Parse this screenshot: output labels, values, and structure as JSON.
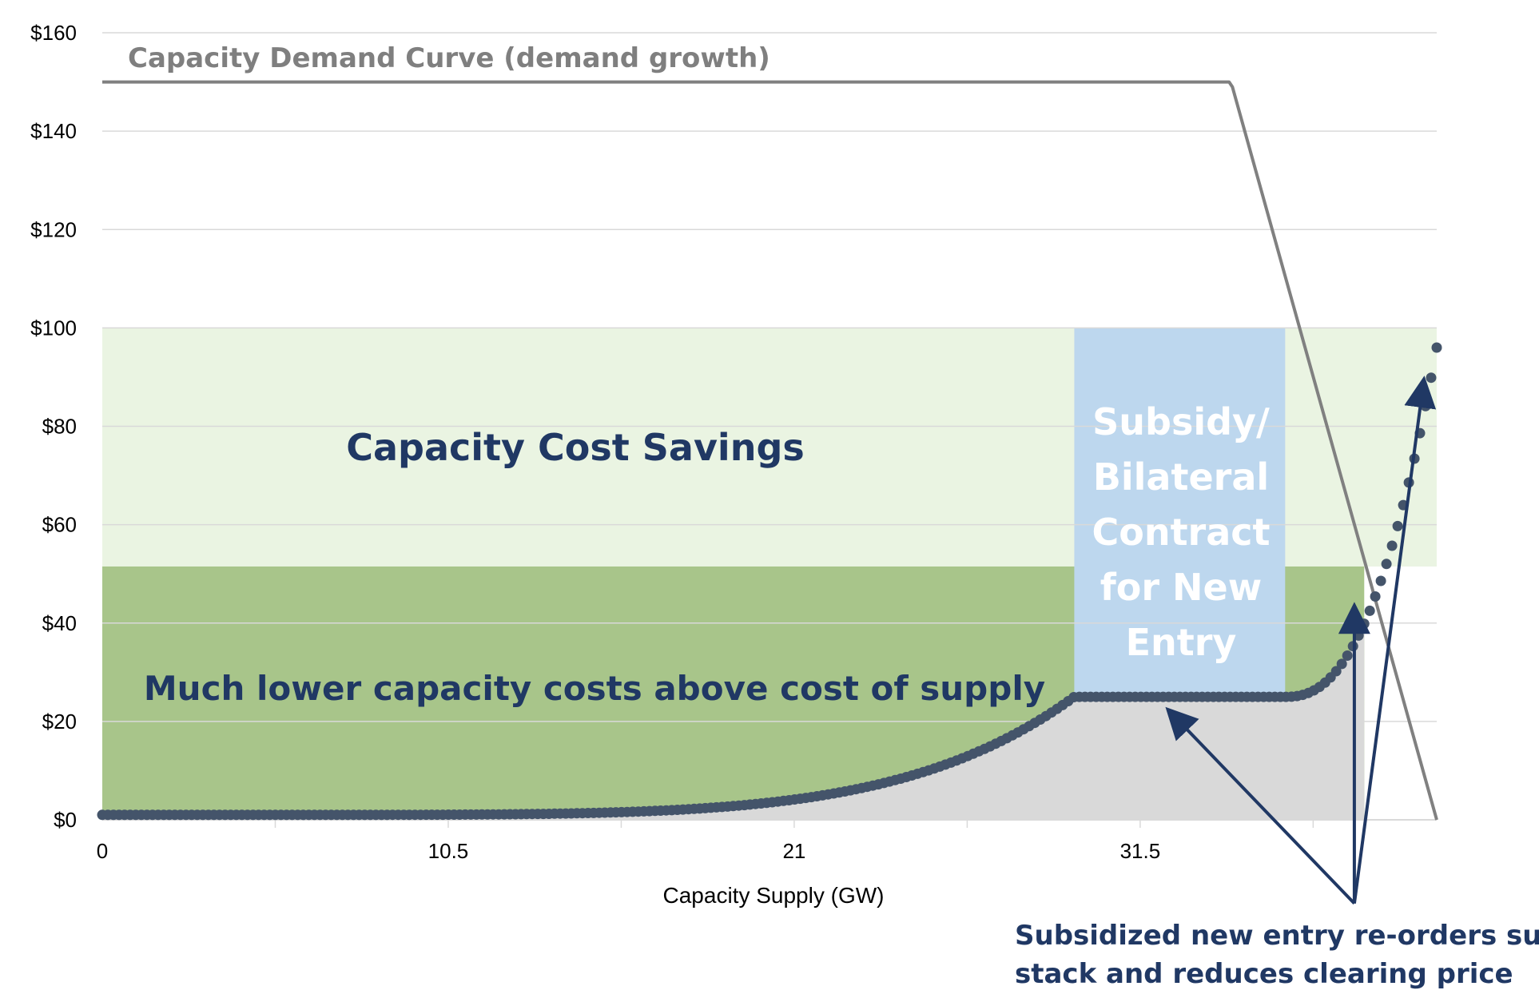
{
  "chart_data": {
    "type": "scatter",
    "xlabel": "Capacity Supply (GW)",
    "ylabel": "",
    "xlim": [
      0,
      40.5
    ],
    "ylim": [
      0,
      160
    ],
    "x_ticks": [
      "0",
      "10.5",
      "21",
      "31.5"
    ],
    "y_ticks": [
      "$0",
      "$20",
      "$40",
      "$60",
      "$80",
      "$100",
      "$120",
      "$140",
      "$160"
    ],
    "grid": true,
    "series": [
      {
        "name": "Capacity Demand Curve (demand growth)",
        "kind": "line",
        "color": "#808080",
        "points": [
          [
            0,
            150
          ],
          [
            34.2,
            150
          ],
          [
            34.3,
            149
          ],
          [
            40.5,
            0
          ]
        ]
      },
      {
        "name": "Capacity supply stack",
        "kind": "dotted-curve",
        "color": "#44546A",
        "x_start": 0,
        "x_end": 40.5,
        "low_price": 1,
        "flat_price": 25,
        "flat_start": 29.5,
        "flat_end": 35.9,
        "max_price": 96,
        "dot_count": 240
      }
    ],
    "regions": [
      {
        "name": "Capacity Cost Savings",
        "x": [
          0,
          40.5
        ],
        "y": [
          51.5,
          100
        ],
        "color": "#EAF4E2"
      },
      {
        "name": "Much lower capacity costs above cost of supply",
        "x": [
          0,
          38.3
        ],
        "y": [
          0,
          51.5
        ],
        "color": "#A8C58A"
      },
      {
        "name": "Subsidy/ Bilateral Contract for New Entry",
        "x": [
          29.5,
          35.9
        ],
        "y": [
          25,
          100
        ],
        "color": "#BDD7EE"
      },
      {
        "name": "cost of supply",
        "kind": "area-under-supply",
        "x": [
          0,
          38.3
        ],
        "color": "#D9D9D9"
      }
    ],
    "annotations": {
      "demand_label": "Capacity Demand Curve (demand growth)",
      "savings_label": "Capacity Cost Savings",
      "lower_costs_label": "Much lower capacity costs above cost of supply",
      "subsidy_lines": [
        "Subsidy/",
        "Bilateral",
        "Contract",
        "for New",
        "Entry"
      ],
      "note_lines": [
        "Subsidized new entry re-orders supply",
        "stack and reduces clearing price"
      ]
    },
    "arrows": [
      {
        "from": [
          38.0,
          -17
        ],
        "to": [
          32.4,
          22
        ]
      },
      {
        "from": [
          38.0,
          -17
        ],
        "to": [
          38.0,
          43
        ]
      },
      {
        "from": [
          38.0,
          -17
        ],
        "to": [
          40.1,
          89
        ]
      }
    ],
    "colors": {
      "label_navy": "#203864",
      "demand_label": "#7F7F7F",
      "subsidy_text": "#FFFFFF",
      "grid": "#D9D9D9"
    }
  }
}
